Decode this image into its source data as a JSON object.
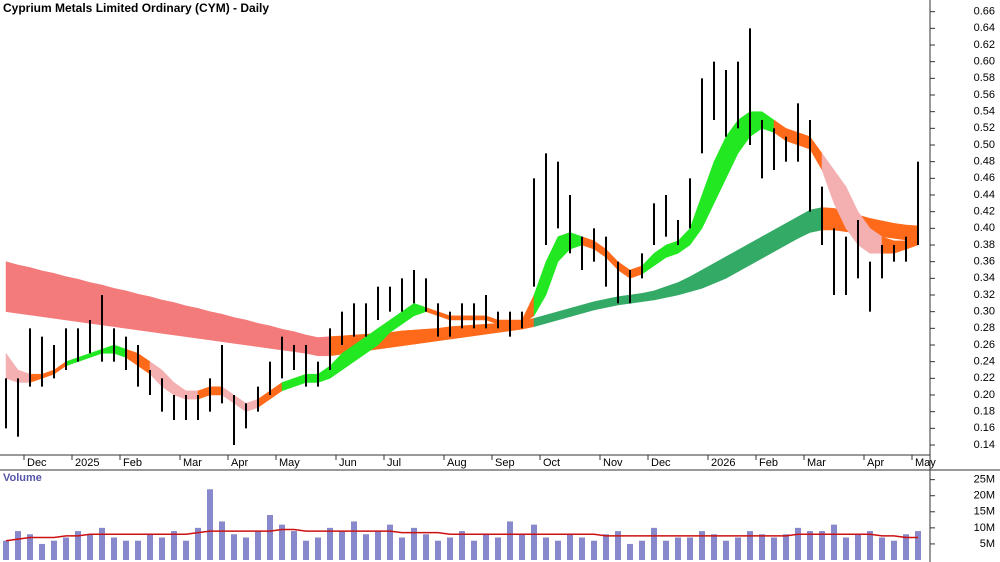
{
  "chart_data": [
    {
      "type": "ohlc",
      "title": "Cyprium Metals Limited Ordinary (CYM) - Daily",
      "categories": [
        null,
        null,
        "Dec",
        null,
        null,
        null,
        "2025",
        null,
        null,
        null,
        "Feb",
        null,
        null,
        null,
        null,
        "Mar",
        null,
        null,
        null,
        "Apr",
        null,
        null,
        null,
        "May",
        null,
        null,
        null,
        null,
        "Jun",
        null,
        null,
        null,
        "Jul",
        null,
        null,
        null,
        null,
        "Aug",
        null,
        null,
        null,
        "Sep",
        null,
        null,
        null,
        "Oct",
        null,
        null,
        null,
        null,
        "Nov",
        null,
        null,
        null,
        "Dec",
        null,
        null,
        null,
        null,
        "2026",
        null,
        null,
        null,
        "Feb",
        null,
        null,
        null,
        "Mar",
        null,
        null,
        null,
        null,
        "Apr",
        null,
        null,
        null,
        "May"
      ],
      "high": [
        0.22,
        0.22,
        0.28,
        0.27,
        0.26,
        0.28,
        0.28,
        0.29,
        0.32,
        0.28,
        0.27,
        0.26,
        0.23,
        0.22,
        0.2,
        0.2,
        0.2,
        0.22,
        0.26,
        0.2,
        0.19,
        0.21,
        0.24,
        0.27,
        0.26,
        0.26,
        0.24,
        0.28,
        0.3,
        0.31,
        0.31,
        0.33,
        0.33,
        0.34,
        0.35,
        0.34,
        0.31,
        0.3,
        0.31,
        0.31,
        0.32,
        0.3,
        0.3,
        0.3,
        0.46,
        0.49,
        0.48,
        0.44,
        0.39,
        0.4,
        0.39,
        0.36,
        0.35,
        0.37,
        0.43,
        0.44,
        0.41,
        0.46,
        0.58,
        0.6,
        0.59,
        0.6,
        0.64,
        0.53,
        0.52,
        0.51,
        0.55,
        0.53,
        0.45,
        0.4,
        0.39,
        0.41,
        0.36,
        0.38,
        0.38,
        0.39,
        0.48
      ],
      "low": [
        0.16,
        0.15,
        0.21,
        0.21,
        0.22,
        0.23,
        0.24,
        0.25,
        0.24,
        0.24,
        0.23,
        0.21,
        0.2,
        0.18,
        0.17,
        0.17,
        0.17,
        0.18,
        0.19,
        0.14,
        0.16,
        0.18,
        0.2,
        0.22,
        0.23,
        0.21,
        0.21,
        0.23,
        0.26,
        0.27,
        0.27,
        0.29,
        0.3,
        0.3,
        0.31,
        0.3,
        0.27,
        0.27,
        0.28,
        0.28,
        0.28,
        0.28,
        0.27,
        0.28,
        0.33,
        0.38,
        0.4,
        0.37,
        0.35,
        0.36,
        0.33,
        0.31,
        0.31,
        0.34,
        0.38,
        0.39,
        0.38,
        0.4,
        0.49,
        0.53,
        0.51,
        0.52,
        0.5,
        0.46,
        0.47,
        0.48,
        0.48,
        0.42,
        0.38,
        0.32,
        0.32,
        0.34,
        0.3,
        0.34,
        0.36,
        0.36,
        0.38
      ],
      "color": "#000000",
      "bands": [
        {
          "upper": [
            0.36,
            0.356,
            0.353,
            0.349,
            0.346,
            0.342,
            0.339,
            0.335,
            0.332,
            0.328,
            0.325,
            0.321,
            0.318,
            0.314,
            0.311,
            0.307,
            0.304,
            0.3,
            0.297,
            0.293,
            0.29,
            0.286,
            0.283,
            0.279,
            0.276,
            0.272,
            0.269,
            0.27,
            0.271,
            0.272,
            0.273,
            0.274,
            0.275,
            0.277,
            0.278,
            0.279,
            0.28,
            0.282,
            0.283,
            0.284,
            0.285,
            0.286,
            0.287,
            0.289,
            0.292,
            0.296,
            0.3,
            0.304,
            0.308,
            0.312,
            0.315,
            0.318,
            0.32,
            0.322,
            0.325,
            0.33,
            0.335,
            0.342,
            0.35,
            0.358,
            0.366,
            0.374,
            0.382,
            0.39,
            0.398,
            0.406,
            0.414,
            0.422,
            0.425,
            0.424,
            0.42,
            0.416,
            0.412,
            0.409,
            0.406,
            0.404,
            0.403
          ],
          "lower": [
            0.3,
            0.298,
            0.296,
            0.294,
            0.292,
            0.29,
            0.288,
            0.286,
            0.284,
            0.282,
            0.28,
            0.278,
            0.276,
            0.274,
            0.272,
            0.27,
            0.268,
            0.266,
            0.264,
            0.262,
            0.26,
            0.258,
            0.256,
            0.254,
            0.252,
            0.25,
            0.247,
            0.247,
            0.249,
            0.251,
            0.253,
            0.255,
            0.257,
            0.259,
            0.261,
            0.263,
            0.265,
            0.267,
            0.269,
            0.271,
            0.273,
            0.275,
            0.277,
            0.279,
            0.282,
            0.286,
            0.29,
            0.294,
            0.298,
            0.302,
            0.305,
            0.308,
            0.31,
            0.312,
            0.314,
            0.317,
            0.32,
            0.324,
            0.328,
            0.334,
            0.34,
            0.348,
            0.356,
            0.364,
            0.372,
            0.38,
            0.388,
            0.395,
            0.398,
            0.398,
            0.396,
            0.394,
            0.392,
            0.39,
            0.388,
            0.386,
            0.384
          ],
          "colors": [
            "#f47b7b",
            "#f47b7b",
            "#f47b7b",
            "#f47b7b",
            "#f47b7b",
            "#f47b7b",
            "#f47b7b",
            "#f47b7b",
            "#f47b7b",
            "#f47b7b",
            "#f47b7b",
            "#f47b7b",
            "#f47b7b",
            "#f47b7b",
            "#f47b7b",
            "#f47b7b",
            "#f47b7b",
            "#f47b7b",
            "#f47b7b",
            "#f47b7b",
            "#f47b7b",
            "#f47b7b",
            "#f47b7b",
            "#f47b7b",
            "#f47b7b",
            "#f47b7b",
            "#f47b7b",
            "#ff6a1a",
            "#ff6a1a",
            "#ff6a1a",
            "#ff6a1a",
            "#ff6a1a",
            "#ff6a1a",
            "#ff6a1a",
            "#ff6a1a",
            "#ff6a1a",
            "#ff6a1a",
            "#ff6a1a",
            "#ff6a1a",
            "#ff6a1a",
            "#ff6a1a",
            "#ff6a1a",
            "#ff6a1a",
            "#ff6a1a",
            "#33aa66",
            "#33aa66",
            "#33aa66",
            "#33aa66",
            "#33aa66",
            "#33aa66",
            "#33aa66",
            "#33aa66",
            "#33aa66",
            "#33aa66",
            "#33aa66",
            "#33aa66",
            "#33aa66",
            "#33aa66",
            "#33aa66",
            "#33aa66",
            "#33aa66",
            "#33aa66",
            "#33aa66",
            "#33aa66",
            "#33aa66",
            "#33aa66",
            "#33aa66",
            "#33aa66",
            "#ff6a1a",
            "#ff6a1a",
            "#ff6a1a",
            "#ff6a1a",
            "#ff6a1a",
            "#ff6a1a",
            "#ff6a1a",
            "#ff6a1a",
            "#ff6a1a"
          ]
        },
        {
          "upper": [
            0.25,
            0.23,
            0.225,
            0.225,
            0.23,
            0.24,
            0.245,
            0.25,
            0.255,
            0.26,
            0.255,
            0.25,
            0.24,
            0.23,
            0.215,
            0.205,
            0.205,
            0.21,
            0.21,
            0.2,
            0.19,
            0.195,
            0.205,
            0.215,
            0.22,
            0.225,
            0.225,
            0.235,
            0.25,
            0.26,
            0.27,
            0.28,
            0.29,
            0.3,
            0.31,
            0.305,
            0.3,
            0.295,
            0.295,
            0.295,
            0.295,
            0.29,
            0.29,
            0.29,
            0.32,
            0.36,
            0.39,
            0.395,
            0.39,
            0.385,
            0.375,
            0.36,
            0.35,
            0.355,
            0.37,
            0.38,
            0.385,
            0.4,
            0.44,
            0.48,
            0.51,
            0.53,
            0.54,
            0.54,
            0.53,
            0.52,
            0.515,
            0.51,
            0.49,
            0.47,
            0.45,
            0.42,
            0.4,
            0.39,
            0.385,
            0.385,
            0.395
          ],
          "lower": [
            0.22,
            0.215,
            0.215,
            0.22,
            0.225,
            0.235,
            0.24,
            0.245,
            0.25,
            0.25,
            0.245,
            0.235,
            0.225,
            0.21,
            0.2,
            0.195,
            0.195,
            0.2,
            0.2,
            0.19,
            0.18,
            0.185,
            0.195,
            0.205,
            0.21,
            0.215,
            0.215,
            0.22,
            0.23,
            0.24,
            0.25,
            0.26,
            0.275,
            0.285,
            0.295,
            0.3,
            0.295,
            0.29,
            0.29,
            0.29,
            0.29,
            0.285,
            0.285,
            0.285,
            0.295,
            0.32,
            0.36,
            0.375,
            0.38,
            0.375,
            0.365,
            0.35,
            0.34,
            0.345,
            0.355,
            0.365,
            0.37,
            0.38,
            0.4,
            0.43,
            0.46,
            0.49,
            0.51,
            0.52,
            0.515,
            0.505,
            0.5,
            0.495,
            0.47,
            0.43,
            0.4,
            0.38,
            0.37,
            0.37,
            0.37,
            0.375,
            0.38
          ],
          "colors": [
            "#f4b0b0",
            "#f4b0b0",
            "#ff6a1a",
            "#ff6a1a",
            "#ff6a1a",
            "#22e822",
            "#22e822",
            "#22e822",
            "#22e822",
            "#22e822",
            "#ff6a1a",
            "#ff6a1a",
            "#f4b0b0",
            "#f4b0b0",
            "#f4b0b0",
            "#f4b0b0",
            "#ff6a1a",
            "#ff6a1a",
            "#f4b0b0",
            "#f4b0b0",
            "#f4b0b0",
            "#ff6a1a",
            "#ff6a1a",
            "#22e822",
            "#22e822",
            "#22e822",
            "#22e822",
            "#22e822",
            "#22e822",
            "#22e822",
            "#22e822",
            "#22e822",
            "#22e822",
            "#22e822",
            "#22e822",
            "#ff6a1a",
            "#ff6a1a",
            "#ff6a1a",
            "#ff6a1a",
            "#ff6a1a",
            "#ff6a1a",
            "#ff6a1a",
            "#ff6a1a",
            "#ff6a1a",
            "#22e822",
            "#22e822",
            "#22e822",
            "#22e822",
            "#ff6a1a",
            "#ff6a1a",
            "#ff6a1a",
            "#ff6a1a",
            "#ff6a1a",
            "#22e822",
            "#22e822",
            "#22e822",
            "#22e822",
            "#22e822",
            "#22e822",
            "#22e822",
            "#22e822",
            "#22e822",
            "#22e822",
            "#22e822",
            "#ff6a1a",
            "#ff6a1a",
            "#ff6a1a",
            "#ff6a1a",
            "#f4b0b0",
            "#f4b0b0",
            "#f4b0b0",
            "#f4b0b0",
            "#f4b0b0",
            "#ff6a1a",
            "#ff6a1a",
            "#ff6a1a",
            "#ff6a1a"
          ]
        }
      ],
      "ylim": [
        0.128,
        0.674
      ],
      "yticks": [
        0.14,
        0.16,
        0.18,
        {
          "value": 0.2,
          "label": "0.20"
        },
        0.22,
        0.24,
        0.26,
        0.28,
        {
          "value": 0.3,
          "label": "0.30"
        },
        0.32,
        0.34,
        0.36,
        0.38,
        {
          "value": 0.4,
          "label": "0.40"
        },
        0.42,
        0.44,
        0.46,
        0.48,
        {
          "value": 0.5,
          "label": "0.50"
        },
        0.52,
        0.54,
        0.56,
        0.58,
        {
          "value": 0.6,
          "label": "0.60"
        },
        0.62,
        0.64,
        0.66
      ]
    },
    {
      "type": "volume",
      "title": "Volume",
      "color": "#8888cc",
      "values": [
        6000000,
        9000000,
        8000000,
        5000000,
        6000000,
        7000000,
        9000000,
        8000000,
        10000000,
        7000000,
        6000000,
        6000000,
        8000000,
        7000000,
        9000000,
        6000000,
        10000000,
        22000000,
        12000000,
        8000000,
        7000000,
        9000000,
        14000000,
        11000000,
        9000000,
        6000000,
        7000000,
        10000000,
        9000000,
        12000000,
        8000000,
        9000000,
        11000000,
        7000000,
        10000000,
        8000000,
        6000000,
        7000000,
        9000000,
        6000000,
        8000000,
        7000000,
        12000000,
        8000000,
        11000000,
        7000000,
        6000000,
        8000000,
        7000000,
        6000000,
        8000000,
        9000000,
        5000000,
        6000000,
        10000000,
        6000000,
        7000000,
        7000000,
        9000000,
        8000000,
        6000000,
        7000000,
        9000000,
        8000000,
        7000000,
        8000000,
        10000000,
        9000000,
        9000000,
        11000000,
        7000000,
        8000000,
        9000000,
        7000000,
        6000000,
        8000000,
        9000000
      ],
      "average": {
        "color": "#cc1111",
        "values": [
          6000000,
          6500000,
          7000000,
          7000000,
          7000000,
          7500000,
          7500000,
          8000000,
          8000000,
          8000000,
          8000000,
          8000000,
          8000000,
          8000000,
          8000000,
          8000000,
          8500000,
          9000000,
          9000000,
          9000000,
          9000000,
          9000000,
          9000000,
          9500000,
          9500000,
          9000000,
          9000000,
          9000000,
          9000000,
          9000000,
          9000000,
          9000000,
          9000000,
          8500000,
          8500000,
          8500000,
          8500000,
          8000000,
          8000000,
          8000000,
          8000000,
          8000000,
          8000000,
          8000000,
          8000000,
          8000000,
          8000000,
          8000000,
          8000000,
          8000000,
          7500000,
          7500000,
          7500000,
          7500000,
          7500000,
          7500000,
          7500000,
          7500000,
          7500000,
          7500000,
          7500000,
          7500000,
          7500000,
          7500000,
          7500000,
          7500000,
          8000000,
          8000000,
          8000000,
          8000000,
          8000000,
          8000000,
          8000000,
          7500000,
          7500000,
          7000000,
          7000000
        ]
      },
      "ylim": [
        0,
        28000000
      ],
      "yticks": [
        {
          "value": 5000000,
          "label": "5M"
        },
        {
          "value": 10000000,
          "label": "10M"
        },
        {
          "value": 15000000,
          "label": "15M"
        },
        {
          "value": 20000000,
          "label": "20M"
        },
        {
          "value": 25000000,
          "label": "25M"
        }
      ]
    }
  ]
}
